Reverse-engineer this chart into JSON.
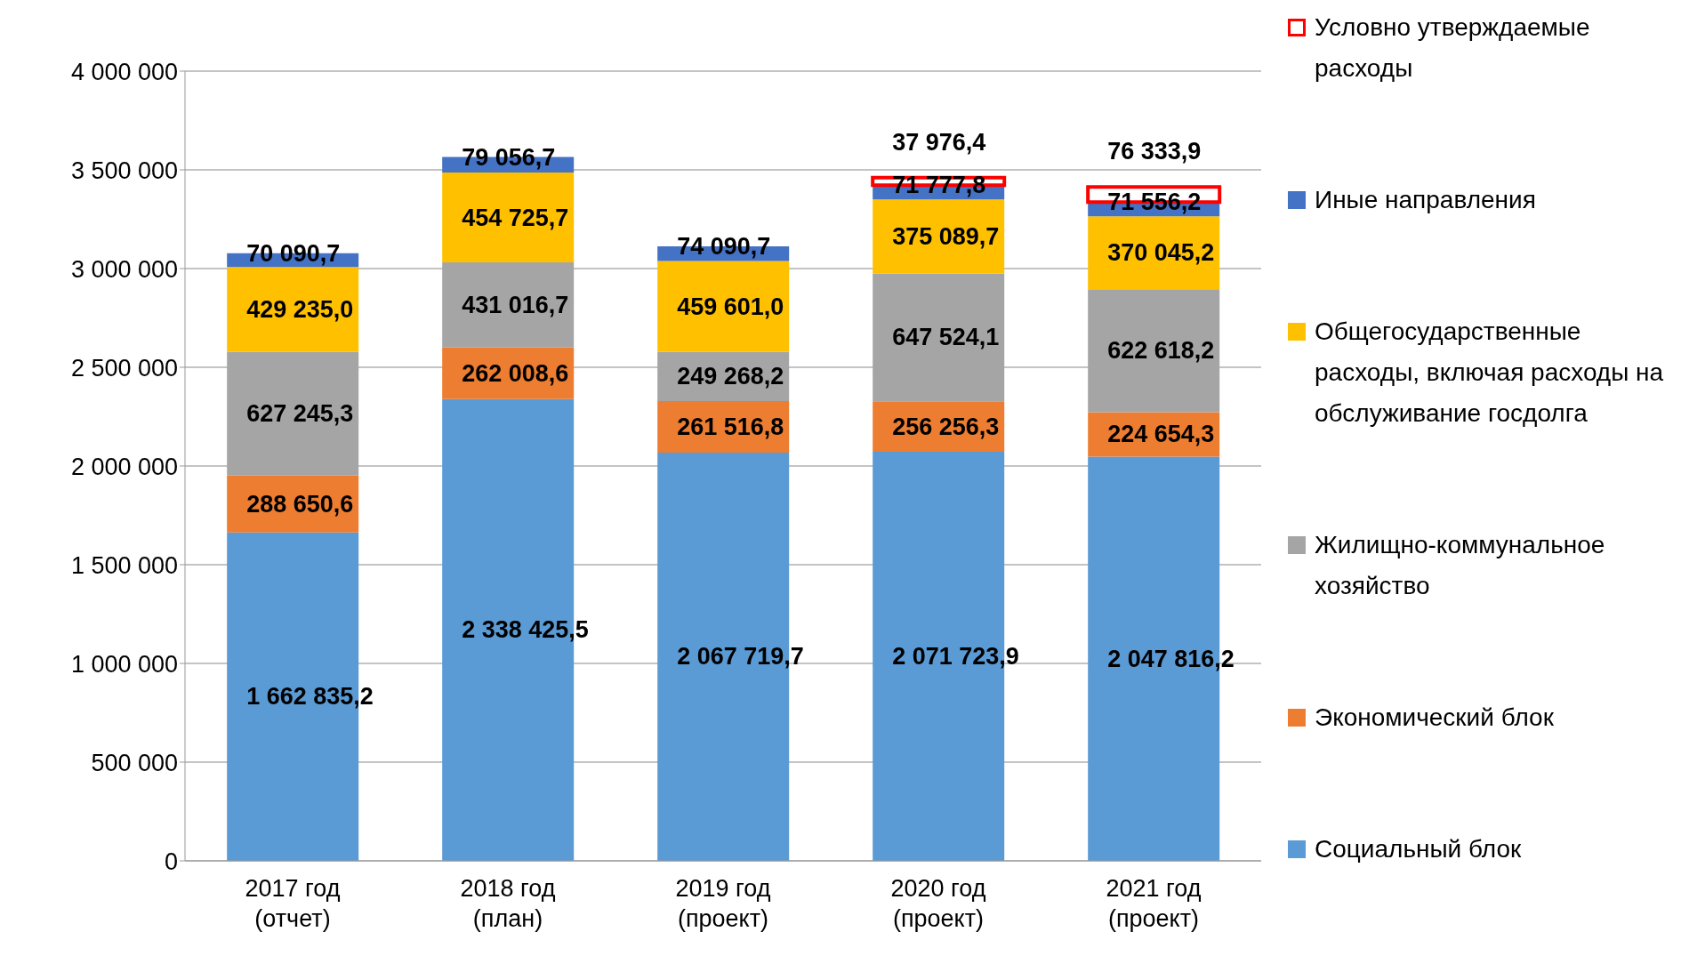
{
  "chart_data": {
    "type": "bar",
    "stacked": true,
    "categories": [
      "2017 год (отчет)",
      "2018 год (план)",
      "2019 год (проект)",
      "2020 год (проект)",
      "2021 год (проект)"
    ],
    "ylim": [
      0,
      4000000
    ],
    "yticks": [
      0,
      500000,
      1000000,
      1500000,
      2000000,
      2500000,
      3000000,
      3500000,
      4000000
    ],
    "grid": "y",
    "legend": "right",
    "series": [
      {
        "name": "Социальный блок",
        "color": "#5b9bd5",
        "values": [
          1662835.2,
          2338425.5,
          2067719.7,
          2071723.9,
          2047816.2
        ],
        "value_labels": [
          "1 662 835,2",
          "2 338 425,5",
          "2 067 719,7",
          "2 071 723,9",
          "2 047 816,2"
        ]
      },
      {
        "name": "Экономический блок",
        "color": "#ed7d31",
        "values": [
          288650.6,
          262008.6,
          261516.8,
          256256.3,
          224654.3
        ],
        "value_labels": [
          "288 650,6",
          "262 008,6",
          "261 516,8",
          "256 256,3",
          "224 654,3"
        ]
      },
      {
        "name": "Жилищно-коммунальное хозяйство",
        "color": "#a5a5a5",
        "values": [
          627245.3,
          431016.7,
          249268.2,
          647524.1,
          622618.2
        ],
        "value_labels": [
          "627 245,3",
          "431 016,7",
          "249 268,2",
          "647 524,1",
          "622 618,2"
        ]
      },
      {
        "name": "Общегосударственные расходы, включая расходы на обслуживание госдолга",
        "color": "#ffc000",
        "values": [
          429235.0,
          454725.7,
          459601.0,
          375089.7,
          370045.2
        ],
        "value_labels": [
          "429 235,0",
          "454 725,7",
          "459 601,0",
          "375 089,7",
          "370 045,2"
        ]
      },
      {
        "name": "Иные  направления",
        "color": "#4472c4",
        "values": [
          70090.7,
          79056.7,
          74090.7,
          71777.8,
          71556.2
        ],
        "value_labels": [
          "70 090,7",
          "79 056,7",
          "74 090,7",
          "71 777,8",
          "71 556,2"
        ]
      },
      {
        "name": "Условно утверждаемые расходы",
        "color": "#ff0000",
        "values": [
          null,
          null,
          null,
          37976.4,
          76333.9
        ],
        "value_labels": [
          null,
          null,
          null,
          "37 976,4",
          "76 333,9"
        ]
      }
    ]
  }
}
